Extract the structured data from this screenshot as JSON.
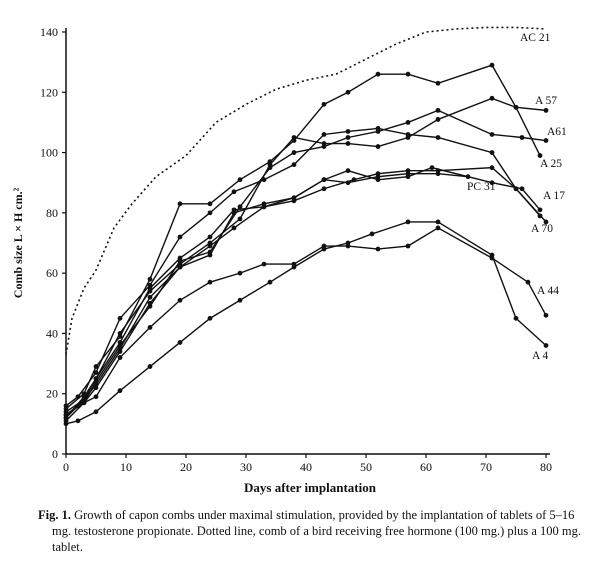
{
  "chart_data": {
    "type": "line",
    "xlabel": "Days after implantation",
    "ylabel": "Comb size L × H cm.²",
    "xlim": [
      0,
      80
    ],
    "xticks": [
      0,
      10,
      20,
      30,
      40,
      50,
      60,
      70,
      80
    ],
    "ylim": [
      0,
      140
    ],
    "yticks": [
      0,
      20,
      40,
      60,
      80,
      100,
      120,
      140
    ],
    "caption_lead": "Fig. 1.",
    "caption": "Growth of capon combs under maximal stimulation, provided by the implantation of tablets of 5–16 mg. testosterone propionate. Dotted line, comb of a bird receiving free hormone (100 mg.) plus a 100 mg. tablet.",
    "series": [
      {
        "name": "AC 21",
        "color": "#111111",
        "line_style": "dotted",
        "x": [
          0,
          1,
          3,
          5,
          8,
          11,
          15,
          20,
          25,
          30,
          35,
          40,
          45,
          50,
          55,
          60,
          65,
          70,
          75,
          80
        ],
        "values": [
          33,
          45,
          55,
          61,
          75,
          83,
          92,
          99,
          110,
          116,
          121,
          124,
          126,
          131,
          136,
          140,
          141,
          141.5,
          141.5,
          141
        ]
      },
      {
        "name": "A 57",
        "color": "#111111",
        "line_style": "solid",
        "x": [
          0,
          3,
          5,
          9,
          14,
          19,
          24,
          29,
          34,
          38,
          43,
          47,
          52,
          57,
          62,
          71,
          75,
          80
        ],
        "values": [
          12,
          18,
          25,
          40,
          54,
          63,
          70,
          78,
          96,
          105,
          103,
          103,
          102,
          105,
          111,
          118,
          115,
          114
        ]
      },
      {
        "name": "A61",
        "color": "#111111",
        "line_style": "solid",
        "x": [
          0,
          3,
          5,
          9,
          14,
          19,
          24,
          29,
          34,
          38,
          43,
          47,
          52,
          57,
          62,
          71,
          76,
          80
        ],
        "values": [
          13,
          17,
          24,
          36,
          49,
          64,
          67,
          82,
          95,
          100,
          102,
          105,
          107,
          110,
          114,
          106,
          105,
          104
        ]
      },
      {
        "name": "A 25",
        "color": "#111111",
        "line_style": "solid",
        "x": [
          0,
          3,
          5,
          9,
          14,
          19,
          24,
          29,
          34,
          38,
          43,
          47,
          52,
          57,
          62,
          71,
          75,
          79
        ],
        "values": [
          15,
          20,
          29,
          39,
          58,
          83,
          83,
          91,
          97,
          104,
          116,
          120,
          126,
          126,
          123,
          129,
          115,
          99
        ]
      },
      {
        "name": "A 17",
        "color": "#111111",
        "line_style": "solid",
        "x": [
          0,
          3,
          5,
          9,
          14,
          19,
          24,
          28,
          33,
          38,
          43,
          47,
          52,
          57,
          61,
          71,
          76,
          79
        ],
        "values": [
          14,
          18,
          23,
          35,
          52,
          62,
          66,
          80,
          83,
          85,
          91,
          94,
          91,
          92,
          95,
          90,
          88,
          81
        ]
      },
      {
        "name": "PC 31",
        "color": "#111111",
        "line_style": "solid",
        "x": [
          0,
          3,
          5,
          9,
          14,
          19,
          24,
          28,
          33,
          38,
          43,
          47,
          52,
          57,
          62,
          67
        ],
        "values": [
          12,
          19,
          25,
          37,
          55,
          65,
          72,
          81,
          82,
          85,
          91,
          90,
          92,
          93,
          93,
          92
        ]
      },
      {
        "name": "A 70",
        "color": "#111111",
        "line_style": "solid",
        "x": [
          0,
          3,
          5,
          9,
          14,
          19,
          24,
          28,
          33,
          38,
          43,
          48,
          52,
          57,
          62,
          71,
          75,
          80
        ],
        "values": [
          11,
          17,
          22,
          34,
          50,
          62,
          69,
          75,
          82,
          84,
          88,
          91,
          93,
          94,
          94,
          95,
          88,
          77
        ]
      },
      {
        "name": "A 44",
        "color": "#111111",
        "line_style": "solid",
        "x": [
          0,
          2,
          5,
          9,
          14,
          19,
          24,
          29,
          33,
          38,
          43,
          47,
          52,
          57,
          62,
          71,
          77,
          80
        ],
        "values": [
          13,
          16,
          19,
          32,
          42,
          51,
          57,
          60,
          63,
          63,
          69,
          69,
          68,
          69,
          75,
          65,
          57,
          46
        ]
      },
      {
        "name": "A 4",
        "color": "#111111",
        "line_style": "solid",
        "x": [
          0,
          2,
          5,
          9,
          14,
          19,
          24,
          29,
          34,
          38,
          43,
          47,
          51,
          57,
          62,
          71,
          75,
          80
        ],
        "values": [
          10,
          11,
          14,
          21,
          29,
          37,
          45,
          51,
          57,
          62,
          68,
          70,
          73,
          77,
          77,
          66,
          45,
          36
        ]
      },
      {
        "name": null,
        "color": "#111111",
        "line_style": "solid",
        "x": [
          0,
          2,
          5,
          9,
          14,
          19,
          24,
          28,
          33,
          38,
          43,
          47,
          52,
          57,
          62,
          71,
          75,
          79
        ],
        "values": [
          16,
          19,
          27,
          45,
          56,
          72,
          80,
          87,
          91,
          96,
          106,
          107,
          108,
          106,
          105,
          100,
          88,
          79
        ]
      }
    ]
  }
}
